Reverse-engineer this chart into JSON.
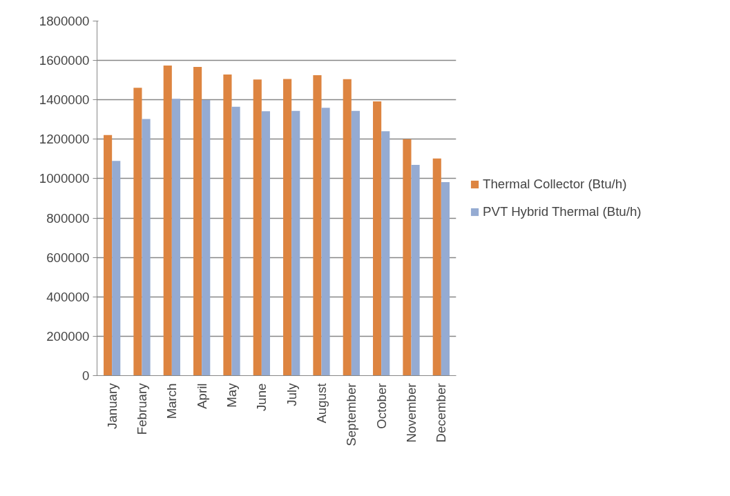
{
  "chart_data": {
    "type": "bar",
    "categories": [
      "January",
      "February",
      "March",
      "April",
      "May",
      "June",
      "July",
      "August",
      "September",
      "October",
      "November",
      "December"
    ],
    "series": [
      {
        "name": "Thermal Collector (Btu/h)",
        "color": "#dd8440",
        "values": [
          1221000,
          1461000,
          1574000,
          1567000,
          1529000,
          1503000,
          1506000,
          1525000,
          1505000,
          1392000,
          1200000,
          1102000
        ]
      },
      {
        "name": "PVT Hybrid Thermal (Btu/h)",
        "color": "#95abd2",
        "values": [
          1090000,
          1303000,
          1405000,
          1399000,
          1365000,
          1342000,
          1344000,
          1360000,
          1344000,
          1241000,
          1070000,
          982000
        ]
      }
    ],
    "ylim": [
      0,
      1800000
    ],
    "yticks": [
      0,
      200000,
      400000,
      600000,
      800000,
      1000000,
      1200000,
      1400000,
      1600000,
      1800000
    ],
    "grid": "y",
    "legend": "right"
  }
}
